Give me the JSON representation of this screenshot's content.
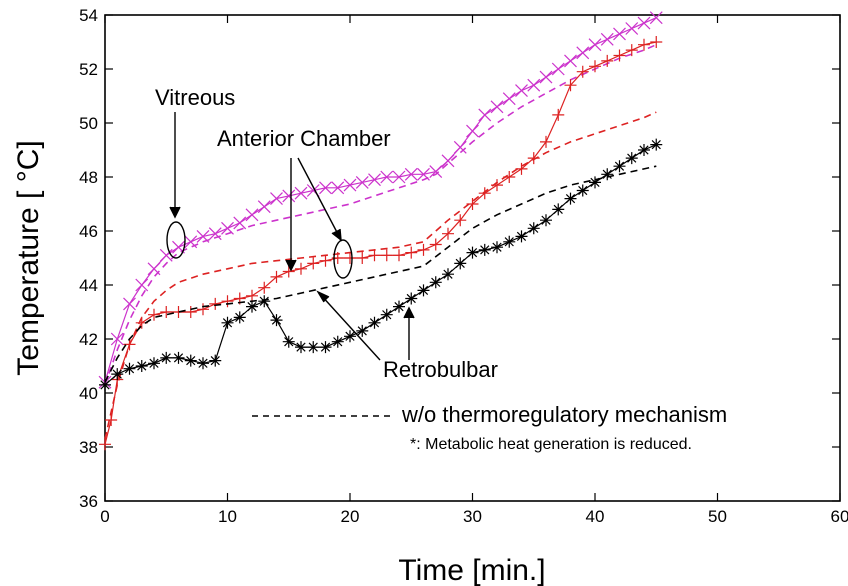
{
  "chart_data": {
    "type": "line",
    "xlabel": "Time  [min.]",
    "ylabel": "Temperature  [ °C]",
    "xlim": [
      0,
      60
    ],
    "ylim": [
      36,
      54
    ],
    "xticks": [
      "0",
      "10",
      "20",
      "30",
      "40",
      "50",
      "60"
    ],
    "yticks": [
      "36",
      "38",
      "40",
      "42",
      "44",
      "46",
      "48",
      "50",
      "52",
      "54"
    ],
    "grid": false,
    "annotations": {
      "vitreous": "Vitreous",
      "anterior": "Anterior Chamber",
      "retrobulbar": "Retrobulbar",
      "legend_dashed": "w/o  thermoregulatory mechanism",
      "note": "*: Metabolic heat generation  is reduced."
    },
    "colors": {
      "vitreous": "#cc33cc",
      "anterior": "#dd2222",
      "retrobulbar": "#000000"
    },
    "series": [
      {
        "key": "vitreous-measured",
        "marker": "x",
        "color": "#cc33cc",
        "x": [
          0,
          1,
          2,
          3,
          4,
          5,
          6,
          7,
          8,
          9,
          10,
          11,
          12,
          13,
          14,
          15,
          16,
          17,
          18,
          19,
          20,
          21,
          22,
          23,
          24,
          25,
          26,
          27,
          28,
          29,
          30,
          31,
          32,
          33,
          34,
          35,
          36,
          37,
          38,
          39,
          40,
          41,
          42,
          43,
          44,
          45
        ],
        "y": [
          40.4,
          42.0,
          43.3,
          44.0,
          44.6,
          45.1,
          45.4,
          45.6,
          45.8,
          45.9,
          46.1,
          46.3,
          46.6,
          46.9,
          47.2,
          47.3,
          47.4,
          47.5,
          47.6,
          47.6,
          47.7,
          47.8,
          47.9,
          48.0,
          48.0,
          48.1,
          48.1,
          48.2,
          48.6,
          49.1,
          49.7,
          50.3,
          50.6,
          50.9,
          51.2,
          51.4,
          51.7,
          52.0,
          52.3,
          52.6,
          52.9,
          53.1,
          53.3,
          53.5,
          53.7,
          53.9
        ]
      },
      {
        "key": "vitreous-model",
        "marker": "none",
        "style": "dash",
        "color": "#cc33cc",
        "x": [
          0,
          1,
          2,
          3,
          4,
          5,
          6,
          8,
          10,
          12,
          14,
          16,
          18,
          20,
          22,
          24,
          26,
          27,
          28,
          30,
          32,
          34,
          36,
          38,
          40,
          42,
          44,
          45
        ],
        "y": [
          40.3,
          41.6,
          42.7,
          43.6,
          44.3,
          44.8,
          45.2,
          45.6,
          45.9,
          46.2,
          46.4,
          46.6,
          46.8,
          47.0,
          47.3,
          47.6,
          47.9,
          48.1,
          48.5,
          49.3,
          50.0,
          50.6,
          51.1,
          51.6,
          52.0,
          52.4,
          52.7,
          52.9
        ]
      },
      {
        "key": "anterior-measured",
        "marker": "+",
        "color": "#dd2222",
        "x": [
          0,
          0.5,
          1,
          2,
          3,
          4,
          5,
          6,
          7,
          8,
          9,
          10,
          11,
          12,
          13,
          14,
          15,
          16,
          17,
          18,
          19,
          20,
          21,
          22,
          23,
          24,
          25,
          26,
          27,
          28,
          29,
          30,
          31,
          32,
          33,
          34,
          35,
          36,
          37,
          38,
          39,
          40,
          41,
          42,
          43,
          44,
          45
        ],
        "y": [
          38.1,
          39.0,
          40.5,
          41.8,
          42.6,
          42.9,
          43.0,
          43.0,
          43.0,
          43.1,
          43.3,
          43.4,
          43.5,
          43.6,
          43.9,
          44.3,
          44.5,
          44.6,
          44.8,
          44.9,
          45.0,
          45.0,
          45.0,
          45.1,
          45.1,
          45.1,
          45.2,
          45.3,
          45.5,
          45.9,
          46.4,
          47.0,
          47.4,
          47.7,
          48.0,
          48.3,
          48.7,
          49.3,
          50.3,
          51.4,
          51.9,
          52.1,
          52.3,
          52.5,
          52.7,
          52.9,
          53.0
        ]
      },
      {
        "key": "anterior-model",
        "marker": "none",
        "style": "dash",
        "color": "#dd2222",
        "x": [
          0,
          1,
          2,
          3,
          4,
          5,
          6,
          8,
          10,
          12,
          14,
          16,
          18,
          20,
          22,
          24,
          25,
          26,
          27,
          28,
          30,
          32,
          34,
          36,
          38,
          40,
          42,
          44,
          45
        ],
        "y": [
          38.3,
          40.3,
          41.8,
          42.8,
          43.4,
          43.8,
          44.1,
          44.4,
          44.6,
          44.8,
          44.9,
          45.0,
          45.1,
          45.2,
          45.3,
          45.4,
          45.5,
          45.6,
          46.0,
          46.4,
          47.1,
          47.8,
          48.4,
          48.9,
          49.3,
          49.6,
          49.9,
          50.2,
          50.4
        ]
      },
      {
        "key": "retrobulbar-measured",
        "marker": "*",
        "color": "#000000",
        "x": [
          0,
          1,
          2,
          3,
          4,
          5,
          6,
          7,
          8,
          9,
          10,
          11,
          12,
          13,
          14,
          15,
          16,
          17,
          18,
          19,
          20,
          21,
          22,
          23,
          24,
          25,
          26,
          27,
          28,
          29,
          30,
          31,
          32,
          33,
          34,
          35,
          36,
          37,
          38,
          39,
          40,
          41,
          42,
          43,
          44,
          45
        ],
        "y": [
          40.3,
          40.7,
          40.9,
          41.0,
          41.1,
          41.3,
          41.3,
          41.2,
          41.1,
          41.2,
          42.6,
          42.8,
          43.2,
          43.4,
          42.7,
          41.9,
          41.7,
          41.7,
          41.7,
          41.9,
          42.1,
          42.3,
          42.6,
          42.9,
          43.2,
          43.5,
          43.8,
          44.1,
          44.4,
          44.8,
          45.2,
          45.3,
          45.4,
          45.6,
          45.8,
          46.1,
          46.4,
          46.8,
          47.2,
          47.5,
          47.8,
          48.1,
          48.4,
          48.7,
          49.0,
          49.2
        ]
      },
      {
        "key": "retrobulbar-model",
        "marker": "none",
        "style": "dash",
        "color": "#000000",
        "x": [
          0,
          1,
          2,
          3,
          4,
          6,
          8,
          10,
          12,
          14,
          16,
          18,
          20,
          22,
          24,
          26,
          28,
          30,
          32,
          34,
          36,
          38,
          40,
          42,
          44,
          45
        ],
        "y": [
          40.4,
          41.3,
          42.0,
          42.5,
          42.8,
          43.0,
          43.2,
          43.3,
          43.4,
          43.5,
          43.7,
          43.9,
          44.1,
          44.3,
          44.5,
          44.7,
          45.4,
          46.1,
          46.6,
          47.0,
          47.4,
          47.7,
          47.9,
          48.1,
          48.3,
          48.4
        ]
      }
    ]
  }
}
